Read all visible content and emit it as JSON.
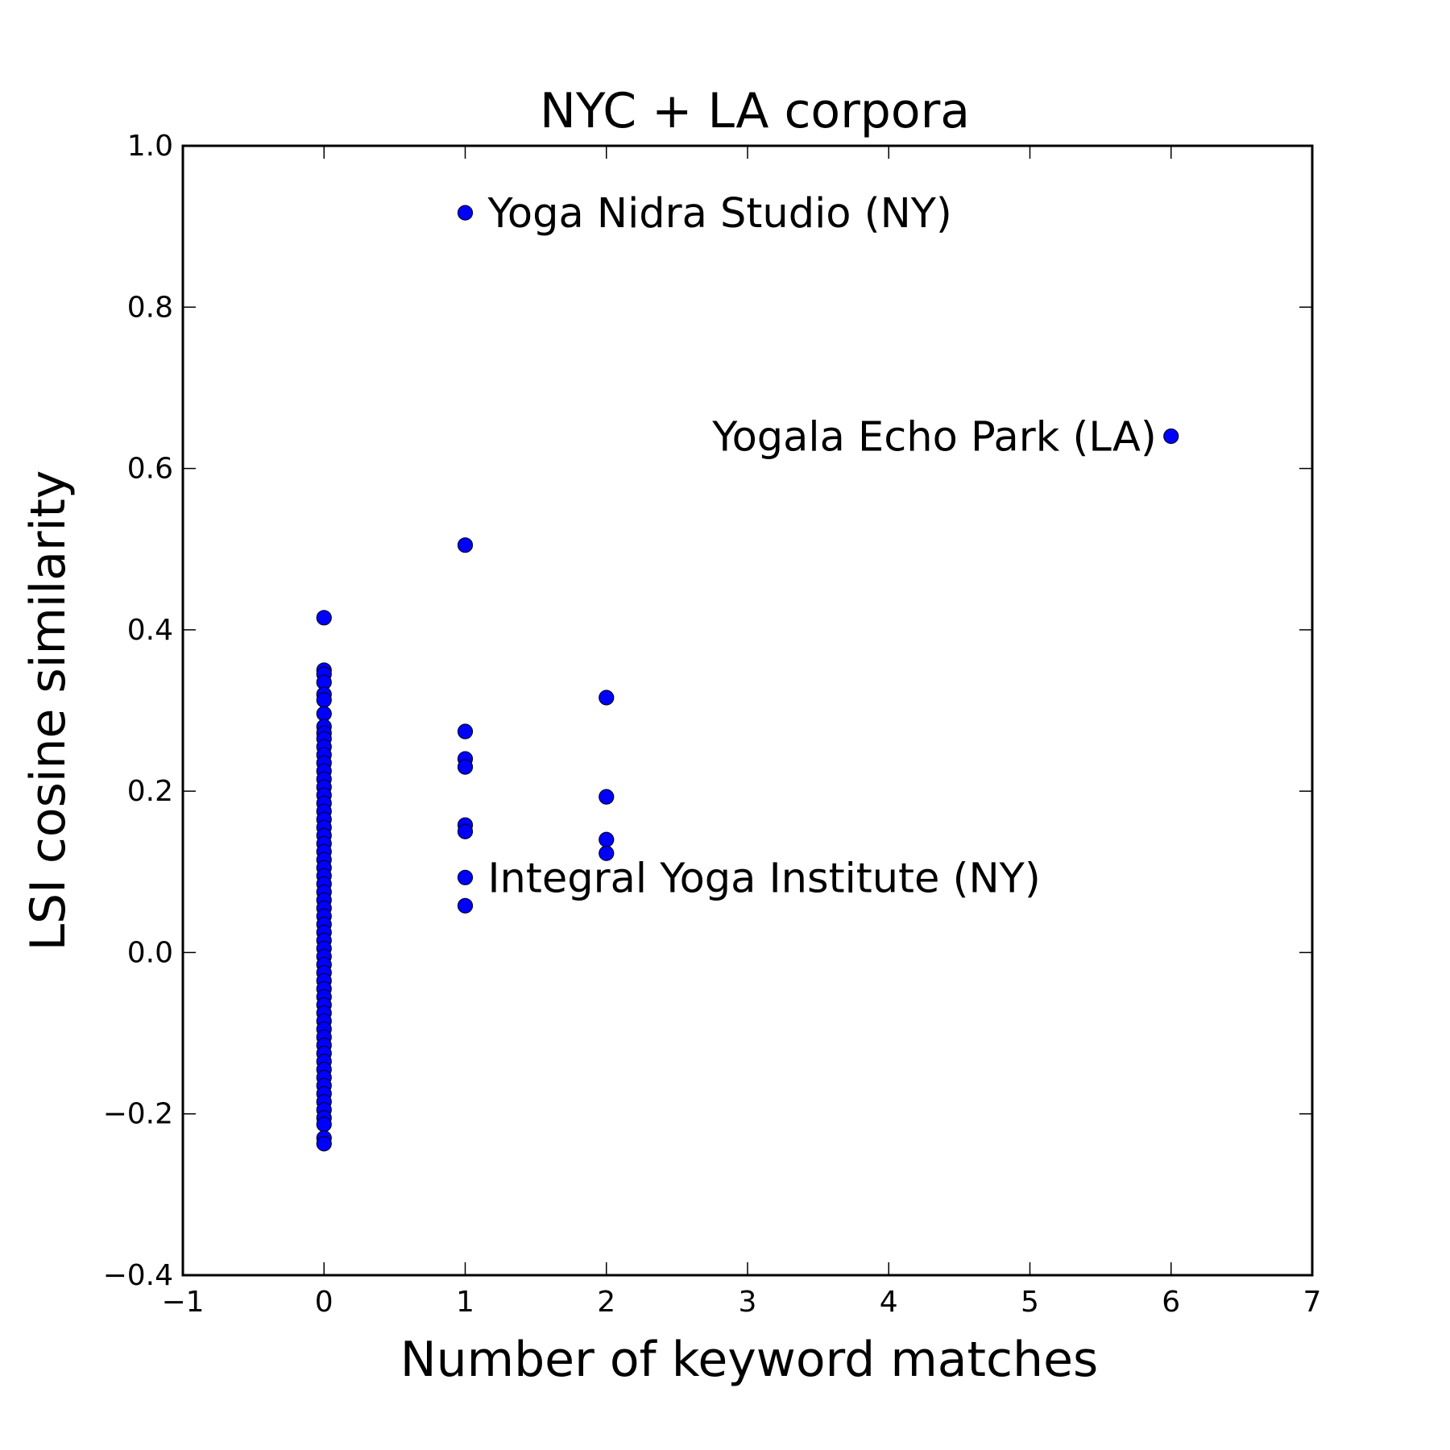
{
  "chart_data": {
    "type": "scatter",
    "title": "NYC + LA corpora",
    "xlabel": "Number of keyword matches",
    "ylabel": "LSI cosine similarity",
    "xlim": [
      -1,
      7
    ],
    "ylim": [
      -0.4,
      1.0
    ],
    "xticks": [
      -1,
      0,
      1,
      2,
      3,
      4,
      5,
      6,
      7
    ],
    "xtick_labels": [
      "−1",
      "0",
      "1",
      "2",
      "3",
      "4",
      "5",
      "6",
      "7"
    ],
    "yticks": [
      -0.4,
      -0.2,
      0.0,
      0.2,
      0.4,
      0.6,
      0.8,
      1.0
    ],
    "ytick_labels": [
      "−0.4",
      "−0.2",
      "0.0",
      "0.2",
      "0.4",
      "0.6",
      "0.8",
      "1.0"
    ],
    "grid": false,
    "marker_color": "#0000ff",
    "marker_edge_color": "#000033",
    "points": [
      {
        "x": 0,
        "y": 0.415
      },
      {
        "x": 0,
        "y": 0.35
      },
      {
        "x": 0,
        "y": 0.345
      },
      {
        "x": 0,
        "y": 0.335
      },
      {
        "x": 0,
        "y": 0.32
      },
      {
        "x": 0,
        "y": 0.313
      },
      {
        "x": 0,
        "y": 0.296
      },
      {
        "x": 0,
        "y": 0.28
      },
      {
        "x": 0,
        "y": 0.272
      },
      {
        "x": 0,
        "y": 0.265
      },
      {
        "x": 0,
        "y": 0.255
      },
      {
        "x": 0,
        "y": 0.245
      },
      {
        "x": 0,
        "y": 0.235
      },
      {
        "x": 0,
        "y": 0.225
      },
      {
        "x": 0,
        "y": 0.215
      },
      {
        "x": 0,
        "y": 0.205
      },
      {
        "x": 0,
        "y": 0.195
      },
      {
        "x": 0,
        "y": 0.185
      },
      {
        "x": 0,
        "y": 0.175
      },
      {
        "x": 0,
        "y": 0.165
      },
      {
        "x": 0,
        "y": 0.155
      },
      {
        "x": 0,
        "y": 0.145
      },
      {
        "x": 0,
        "y": 0.135
      },
      {
        "x": 0,
        "y": 0.125
      },
      {
        "x": 0,
        "y": 0.115
      },
      {
        "x": 0,
        "y": 0.105
      },
      {
        "x": 0,
        "y": 0.095
      },
      {
        "x": 0,
        "y": 0.085
      },
      {
        "x": 0,
        "y": 0.075
      },
      {
        "x": 0,
        "y": 0.065
      },
      {
        "x": 0,
        "y": 0.055
      },
      {
        "x": 0,
        "y": 0.045
      },
      {
        "x": 0,
        "y": 0.035
      },
      {
        "x": 0,
        "y": 0.025
      },
      {
        "x": 0,
        "y": 0.015
      },
      {
        "x": 0,
        "y": 0.005
      },
      {
        "x": 0,
        "y": -0.005
      },
      {
        "x": 0,
        "y": -0.015
      },
      {
        "x": 0,
        "y": -0.025
      },
      {
        "x": 0,
        "y": -0.035
      },
      {
        "x": 0,
        "y": -0.045
      },
      {
        "x": 0,
        "y": -0.055
      },
      {
        "x": 0,
        "y": -0.065
      },
      {
        "x": 0,
        "y": -0.075
      },
      {
        "x": 0,
        "y": -0.085
      },
      {
        "x": 0,
        "y": -0.095
      },
      {
        "x": 0,
        "y": -0.105
      },
      {
        "x": 0,
        "y": -0.115
      },
      {
        "x": 0,
        "y": -0.125
      },
      {
        "x": 0,
        "y": -0.135
      },
      {
        "x": 0,
        "y": -0.145
      },
      {
        "x": 0,
        "y": -0.155
      },
      {
        "x": 0,
        "y": -0.165
      },
      {
        "x": 0,
        "y": -0.175
      },
      {
        "x": 0,
        "y": -0.185
      },
      {
        "x": 0,
        "y": -0.195
      },
      {
        "x": 0,
        "y": -0.205
      },
      {
        "x": 0,
        "y": -0.213
      },
      {
        "x": 0,
        "y": -0.23
      },
      {
        "x": 0,
        "y": -0.237
      },
      {
        "x": 1,
        "y": 0.917
      },
      {
        "x": 1,
        "y": 0.505
      },
      {
        "x": 1,
        "y": 0.274
      },
      {
        "x": 1,
        "y": 0.24
      },
      {
        "x": 1,
        "y": 0.23
      },
      {
        "x": 1,
        "y": 0.158
      },
      {
        "x": 1,
        "y": 0.15
      },
      {
        "x": 1,
        "y": 0.093
      },
      {
        "x": 1,
        "y": 0.058
      },
      {
        "x": 2,
        "y": 0.316
      },
      {
        "x": 2,
        "y": 0.193
      },
      {
        "x": 2,
        "y": 0.14
      },
      {
        "x": 2,
        "y": 0.123
      },
      {
        "x": 6,
        "y": 0.64
      }
    ],
    "annotations": [
      {
        "text": "Yoga Nidra Studio (NY)",
        "x": 1,
        "y": 0.917,
        "anchor": "start"
      },
      {
        "text": "Yogala Echo Park (LA)",
        "x": 6,
        "y": 0.64,
        "anchor": "end"
      },
      {
        "text": "Integral Yoga Institute (NY)",
        "x": 1,
        "y": 0.093,
        "anchor": "start"
      }
    ]
  }
}
